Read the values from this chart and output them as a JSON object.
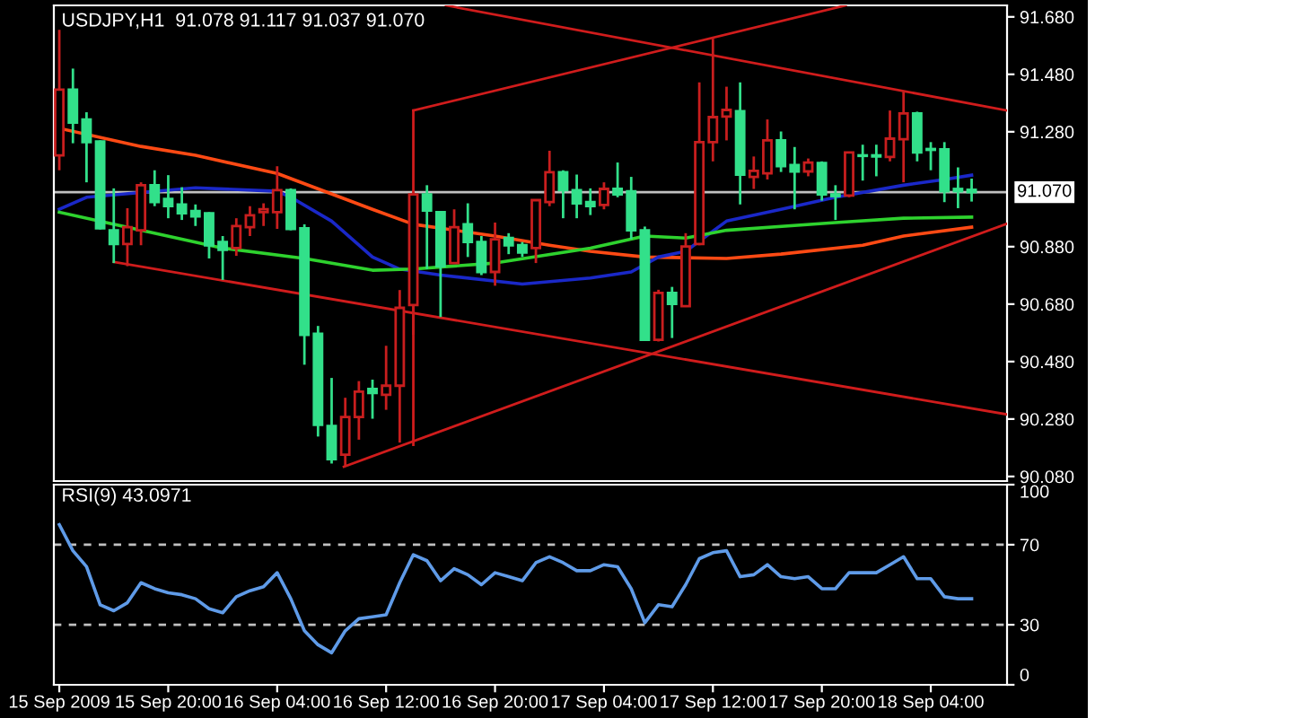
{
  "chart_data": [
    {
      "type": "candlestick",
      "title": "USDJPY,H1  91.078 91.117 91.037 91.070",
      "x": [
        "2009-09-15T12:00",
        "2009-09-15T13:00",
        "2009-09-15T14:00",
        "2009-09-15T15:00",
        "2009-09-15T16:00",
        "2009-09-15T17:00",
        "2009-09-15T18:00",
        "2009-09-15T19:00",
        "2009-09-15T20:00",
        "2009-09-15T21:00",
        "2009-09-15T22:00",
        "2009-09-15T23:00",
        "2009-09-16T00:00",
        "2009-09-16T01:00",
        "2009-09-16T02:00",
        "2009-09-16T03:00",
        "2009-09-16T04:00",
        "2009-09-16T05:00",
        "2009-09-16T06:00",
        "2009-09-16T07:00",
        "2009-09-16T08:00",
        "2009-09-16T09:00",
        "2009-09-16T10:00",
        "2009-09-16T11:00",
        "2009-09-16T12:00",
        "2009-09-16T13:00",
        "2009-09-16T14:00",
        "2009-09-16T15:00",
        "2009-09-16T16:00",
        "2009-09-16T17:00",
        "2009-09-16T18:00",
        "2009-09-16T19:00",
        "2009-09-16T20:00",
        "2009-09-16T21:00",
        "2009-09-16T22:00",
        "2009-09-16T23:00",
        "2009-09-17T00:00",
        "2009-09-17T01:00",
        "2009-09-17T02:00",
        "2009-09-17T03:00",
        "2009-09-17T04:00",
        "2009-09-17T05:00",
        "2009-09-17T06:00",
        "2009-09-17T07:00",
        "2009-09-17T08:00",
        "2009-09-17T09:00",
        "2009-09-17T10:00",
        "2009-09-17T11:00",
        "2009-09-17T12:00",
        "2009-09-17T13:00",
        "2009-09-17T14:00",
        "2009-09-17T15:00",
        "2009-09-17T16:00",
        "2009-09-17T17:00",
        "2009-09-17T18:00",
        "2009-09-17T19:00",
        "2009-09-17T20:00",
        "2009-09-17T21:00",
        "2009-09-17T22:00",
        "2009-09-17T23:00",
        "2009-09-18T00:00",
        "2009-09-18T01:00",
        "2009-09-18T02:00",
        "2009-09-18T03:00",
        "2009-09-18T04:00",
        "2009-09-18T05:00",
        "2009-09-18T06:00",
        "2009-09-18T07:00"
      ],
      "ohlc": [
        [
          91.198,
          91.635,
          91.146,
          91.427
        ],
        [
          91.427,
          91.5,
          91.24,
          91.312
        ],
        [
          91.323,
          91.348,
          91.104,
          91.244
        ],
        [
          91.246,
          91.25,
          90.94,
          90.944
        ],
        [
          90.937,
          91.083,
          90.823,
          90.889
        ],
        [
          90.889,
          91.014,
          90.812,
          90.948
        ],
        [
          90.937,
          91.104,
          90.885,
          91.094
        ],
        [
          91.094,
          91.146,
          91.021,
          91.035
        ],
        [
          91.046,
          91.129,
          90.979,
          91.021
        ],
        [
          91.027,
          91.087,
          90.973,
          90.996
        ],
        [
          91.004,
          91.027,
          90.952,
          90.985
        ],
        [
          90.996,
          91.0,
          90.839,
          90.885
        ],
        [
          90.896,
          90.917,
          90.764,
          90.869
        ],
        [
          90.875,
          90.979,
          90.848,
          90.952
        ],
        [
          90.948,
          91.021,
          90.917,
          90.989
        ],
        [
          91.0,
          91.031,
          90.952,
          91.01
        ],
        [
          91.0,
          91.16,
          90.942,
          91.077
        ],
        [
          91.077,
          91.083,
          90.937,
          90.942
        ],
        [
          90.944,
          90.958,
          90.469,
          90.573
        ],
        [
          90.577,
          90.604,
          90.219,
          90.26
        ],
        [
          90.256,
          90.423,
          90.125,
          90.14
        ],
        [
          90.156,
          90.354,
          90.114,
          90.287
        ],
        [
          90.287,
          90.412,
          90.208,
          90.375
        ],
        [
          90.385,
          90.417,
          90.281,
          90.371
        ],
        [
          90.364,
          90.535,
          90.312,
          90.396
        ],
        [
          90.396,
          90.729,
          90.198,
          90.667
        ],
        [
          90.677,
          91.07,
          90.573,
          91.062
        ],
        [
          91.062,
          91.094,
          90.802,
          91.006
        ],
        [
          91.0,
          91.0,
          90.635,
          90.812
        ],
        [
          90.823,
          91.01,
          90.82,
          90.948
        ],
        [
          90.958,
          91.031,
          90.844,
          90.896
        ],
        [
          90.896,
          90.917,
          90.781,
          90.792
        ],
        [
          90.792,
          90.964,
          90.744,
          90.906
        ],
        [
          90.91,
          90.927,
          90.854,
          90.885
        ],
        [
          90.885,
          90.896,
          90.844,
          90.86
        ],
        [
          90.875,
          91.042,
          90.823,
          91.042
        ],
        [
          91.035,
          91.214,
          91.021,
          91.139
        ],
        [
          91.139,
          91.146,
          90.979,
          91.077
        ],
        [
          91.077,
          91.131,
          90.979,
          91.031
        ],
        [
          91.035,
          91.083,
          90.99,
          91.021
        ],
        [
          91.025,
          91.104,
          91.01,
          91.081
        ],
        [
          91.081,
          91.173,
          91.052,
          91.062
        ],
        [
          91.073,
          91.123,
          90.906,
          90.937
        ],
        [
          90.937,
          90.95,
          90.552,
          90.556
        ],
        [
          90.556,
          90.73,
          90.55,
          90.719
        ],
        [
          90.719,
          90.74,
          90.562,
          90.681
        ],
        [
          90.673,
          90.927,
          90.67,
          90.881
        ],
        [
          90.889,
          91.452,
          90.885,
          91.244
        ],
        [
          91.244,
          91.604,
          91.177,
          91.331
        ],
        [
          91.333,
          91.437,
          91.25,
          91.356
        ],
        [
          91.352,
          91.452,
          91.027,
          91.131
        ],
        [
          91.123,
          91.194,
          91.081,
          91.144
        ],
        [
          91.135,
          91.323,
          91.114,
          91.25
        ],
        [
          91.25,
          91.281,
          91.14,
          91.16
        ],
        [
          91.164,
          91.227,
          91.01,
          91.142
        ],
        [
          91.142,
          91.187,
          91.125,
          91.173
        ],
        [
          91.171,
          91.177,
          91.04,
          91.062
        ],
        [
          91.062,
          91.094,
          90.973,
          91.056
        ],
        [
          91.058,
          91.21,
          91.052,
          91.208
        ],
        [
          91.198,
          91.235,
          91.11,
          91.196
        ],
        [
          91.198,
          91.235,
          91.125,
          91.194
        ],
        [
          91.192,
          91.354,
          91.177,
          91.256
        ],
        [
          91.254,
          91.423,
          91.104,
          91.344
        ],
        [
          91.344,
          91.35,
          91.177,
          91.208
        ],
        [
          91.22,
          91.244,
          91.146,
          91.217
        ],
        [
          91.219,
          91.244,
          91.035,
          91.073
        ],
        [
          91.081,
          91.156,
          91.014,
          91.073
        ],
        [
          91.078,
          91.117,
          91.037,
          91.07
        ]
      ],
      "colors": [
        "#c81e1e",
        "#32e08a",
        "#32e08a",
        "#32e08a",
        "#32e08a",
        "#c81e1e",
        "#c81e1e",
        "#32e08a",
        "#32e08a",
        "#32e08a",
        "#32e08a",
        "#32e08a",
        "#32e08a",
        "#c81e1e",
        "#c81e1e",
        "#c81e1e",
        "#c81e1e",
        "#32e08a",
        "#32e08a",
        "#32e08a",
        "#32e08a",
        "#c81e1e",
        "#c81e1e",
        "#32e08a",
        "#c81e1e",
        "#c81e1e",
        "#c81e1e",
        "#32e08a",
        "#32e08a",
        "#c81e1e",
        "#32e08a",
        "#32e08a",
        "#c81e1e",
        "#32e08a",
        "#32e08a",
        "#c81e1e",
        "#c81e1e",
        "#32e08a",
        "#32e08a",
        "#32e08a",
        "#c81e1e",
        "#32e08a",
        "#32e08a",
        "#32e08a",
        "#c81e1e",
        "#32e08a",
        "#c81e1e",
        "#c81e1e",
        "#c81e1e",
        "#c81e1e",
        "#32e08a",
        "#c81e1e",
        "#c81e1e",
        "#32e08a",
        "#32e08a",
        "#c81e1e",
        "#32e08a",
        "#32e08a",
        "#c81e1e",
        "#32e08a",
        "#32e08a",
        "#c81e1e",
        "#c81e1e",
        "#32e08a",
        "#32e08a",
        "#32e08a",
        "#32e08a",
        "#32e08a"
      ],
      "series": [
        {
          "type": "line",
          "color": "#ff4a14",
          "x": [
            "2009-09-15T12:00",
            "2009-09-15T18:00",
            "2009-09-15T22:00",
            "2009-09-16T04:00",
            "2009-09-16T11:00",
            "2009-09-16T14:00",
            "2009-09-16T20:00",
            "2009-09-17T00:00",
            "2009-09-17T03:00",
            "2009-09-17T07:00",
            "2009-09-17T13:00",
            "2009-09-17T17:00",
            "2009-09-17T23:00",
            "2009-09-18T02:00",
            "2009-09-18T07:00"
          ],
          "values": [
            91.292,
            91.229,
            91.198,
            91.135,
            91.01,
            90.958,
            90.917,
            90.885,
            90.864,
            90.844,
            90.839,
            90.854,
            90.885,
            90.917,
            90.948
          ]
        },
        {
          "type": "line",
          "color": "#1a28c8",
          "x": [
            "2009-09-15T12:00",
            "2009-09-15T14:00",
            "2009-09-15T22:00",
            "2009-09-16T04:00",
            "2009-09-16T05:00",
            "2009-09-16T08:00",
            "2009-09-16T11:00",
            "2009-09-16T13:00",
            "2009-09-16T16:00",
            "2009-09-16T22:00",
            "2009-09-17T03:00",
            "2009-09-17T06:00",
            "2009-09-17T08:00",
            "2009-09-17T10:00",
            "2009-09-17T13:00",
            "2009-09-17T17:00",
            "2009-09-17T21:00",
            "2009-09-18T02:00",
            "2009-09-18T05:00",
            "2009-09-18T07:00"
          ],
          "values": [
            91.01,
            91.052,
            91.085,
            91.073,
            91.052,
            90.969,
            90.844,
            90.802,
            90.781,
            90.75,
            90.771,
            90.792,
            90.844,
            90.864,
            90.969,
            91.01,
            91.052,
            91.094,
            91.114,
            91.129
          ]
        },
        {
          "type": "line",
          "color": "#2ed22e",
          "x": [
            "2009-09-15T12:00",
            "2009-09-15T18:00",
            "2009-09-16T00:00",
            "2009-09-16T06:00",
            "2009-09-16T11:00",
            "2009-09-16T14:00",
            "2009-09-16T20:00",
            "2009-09-17T03:00",
            "2009-09-17T07:00",
            "2009-09-17T10:00",
            "2009-09-17T13:00",
            "2009-09-17T21:00",
            "2009-09-18T02:00",
            "2009-09-18T07:00"
          ],
          "values": [
            91.0,
            90.937,
            90.875,
            90.839,
            90.798,
            90.802,
            90.823,
            90.875,
            90.917,
            90.91,
            90.937,
            90.964,
            90.979,
            90.983
          ]
        },
        {
          "type": "line",
          "color": "#d01c1c",
          "x": [
            "2009-09-16T16:24",
            "2009-09-18T09:36"
          ],
          "values": [
            91.72,
            91.354
          ]
        },
        {
          "type": "line",
          "color": "#d01c1c",
          "x": [
            "2009-09-16T14:00",
            "2009-09-17T21:45"
          ],
          "values": [
            91.354,
            91.72
          ]
        },
        {
          "type": "line",
          "color": "#d01c1c",
          "x": [
            "2009-09-16T14:00",
            "2009-09-16T14:00"
          ],
          "values": [
            91.354,
            90.19
          ]
        },
        {
          "type": "line",
          "color": "#d01c1c",
          "x": [
            "2009-09-16T08:54",
            "2009-09-18T09:36"
          ],
          "values": [
            90.114,
            90.96
          ]
        },
        {
          "type": "line",
          "color": "#d01c1c",
          "x": [
            "2009-09-15T16:00",
            "2009-09-18T09:36"
          ],
          "values": [
            90.827,
            90.296
          ]
        }
      ],
      "xlim": [
        "2009-09-15T11:36",
        "2009-09-18T09:36"
      ],
      "ylim": [
        90.064,
        91.72
      ],
      "yticks": [
        {
          "value": 91.68,
          "label": "91.680"
        },
        {
          "value": 91.48,
          "label": "91.480"
        },
        {
          "value": 91.28,
          "label": "91.280"
        },
        {
          "value": 90.88,
          "label": "90.880"
        },
        {
          "value": 90.68,
          "label": "90.680"
        },
        {
          "value": 90.48,
          "label": "90.480"
        },
        {
          "value": 90.28,
          "label": "90.280"
        },
        {
          "value": 90.08,
          "label": "90.080"
        }
      ],
      "ref_lines": [
        {
          "axis": "y",
          "value": 91.07,
          "label": "91.070",
          "color": "#c0c0c0"
        }
      ],
      "tick_labels": "y"
    },
    {
      "type": "line",
      "title": "RSI(9) 43.0971",
      "series": [
        {
          "color": "#5f9be8",
          "values": [
            80,
            67,
            59,
            40,
            37,
            41,
            51,
            48,
            46,
            45,
            43,
            38,
            36,
            44,
            47,
            49,
            56,
            43,
            27,
            20,
            16,
            27,
            33,
            34,
            35,
            51,
            65,
            62,
            52,
            58,
            55,
            50,
            56,
            54,
            52,
            61,
            64,
            61,
            57,
            57,
            60,
            59,
            48,
            31,
            40,
            39,
            50,
            63,
            66,
            67,
            54,
            55,
            60,
            54,
            53,
            54,
            48,
            48,
            56,
            56,
            56,
            60,
            64,
            53,
            53,
            44,
            43,
            43
          ]
        }
      ],
      "x": [
        "2009-09-15T12:00",
        "2009-09-15T13:00",
        "2009-09-15T14:00",
        "2009-09-15T15:00",
        "2009-09-15T16:00",
        "2009-09-15T17:00",
        "2009-09-15T18:00",
        "2009-09-15T19:00",
        "2009-09-15T20:00",
        "2009-09-15T21:00",
        "2009-09-15T22:00",
        "2009-09-15T23:00",
        "2009-09-16T00:00",
        "2009-09-16T01:00",
        "2009-09-16T02:00",
        "2009-09-16T03:00",
        "2009-09-16T04:00",
        "2009-09-16T05:00",
        "2009-09-16T06:00",
        "2009-09-16T07:00",
        "2009-09-16T08:00",
        "2009-09-16T09:00",
        "2009-09-16T10:00",
        "2009-09-16T11:00",
        "2009-09-16T12:00",
        "2009-09-16T13:00",
        "2009-09-16T14:00",
        "2009-09-16T15:00",
        "2009-09-16T16:00",
        "2009-09-16T17:00",
        "2009-09-16T18:00",
        "2009-09-16T19:00",
        "2009-09-16T20:00",
        "2009-09-16T21:00",
        "2009-09-16T22:00",
        "2009-09-16T23:00",
        "2009-09-17T00:00",
        "2009-09-17T01:00",
        "2009-09-17T02:00",
        "2009-09-17T03:00",
        "2009-09-17T04:00",
        "2009-09-17T05:00",
        "2009-09-17T06:00",
        "2009-09-17T07:00",
        "2009-09-17T08:00",
        "2009-09-17T09:00",
        "2009-09-17T10:00",
        "2009-09-17T11:00",
        "2009-09-17T12:00",
        "2009-09-17T13:00",
        "2009-09-17T14:00",
        "2009-09-17T15:00",
        "2009-09-17T16:00",
        "2009-09-17T17:00",
        "2009-09-17T18:00",
        "2009-09-17T19:00",
        "2009-09-17T20:00",
        "2009-09-17T21:00",
        "2009-09-17T22:00",
        "2009-09-17T23:00",
        "2009-09-18T00:00",
        "2009-09-18T01:00",
        "2009-09-18T02:00",
        "2009-09-18T03:00",
        "2009-09-18T04:00",
        "2009-09-18T05:00",
        "2009-09-18T06:00",
        "2009-09-18T07:00"
      ],
      "xlim": [
        "2009-09-15T11:36",
        "2009-09-18T09:36"
      ],
      "xticks": [
        {
          "value": "2009-09-15T12:00",
          "label": "15 Sep 2009"
        },
        {
          "value": "2009-09-15T20:00",
          "label": "15 Sep 20:00"
        },
        {
          "value": "2009-09-16T04:00",
          "label": "16 Sep 04:00"
        },
        {
          "value": "2009-09-16T12:00",
          "label": "16 Sep 12:00"
        },
        {
          "value": "2009-09-16T20:00",
          "label": "16 Sep 20:00"
        },
        {
          "value": "2009-09-17T04:00",
          "label": "17 Sep 04:00"
        },
        {
          "value": "2009-09-17T12:00",
          "label": "17 Sep 12:00"
        },
        {
          "value": "2009-09-17T20:00",
          "label": "17 Sep 20:00"
        },
        {
          "value": "2009-09-18T04:00",
          "label": "18 Sep 04:00"
        }
      ],
      "ylim": [
        0,
        100
      ],
      "yticks": [
        0,
        30,
        70,
        100
      ],
      "ref_lines": [
        {
          "axis": "y",
          "value": 70,
          "color": "#c0c0c0",
          "line_style": "dashed"
        },
        {
          "axis": "y",
          "value": 30,
          "color": "#c0c0c0",
          "line_style": "dashed"
        }
      ]
    }
  ]
}
